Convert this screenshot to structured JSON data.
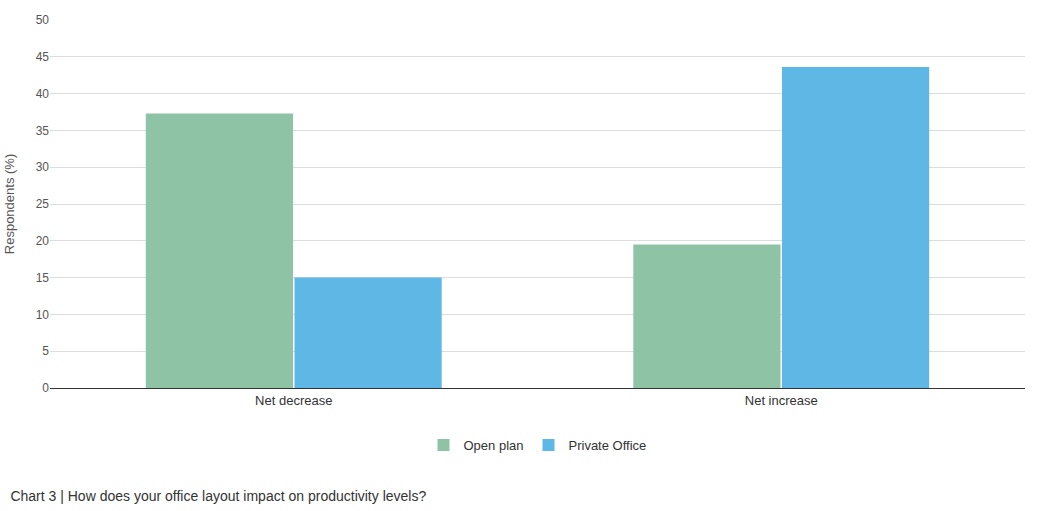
{
  "chart_data": {
    "type": "bar",
    "title": "Chart 3 | How does your office layout impact on productivity levels?",
    "y_label": "Respondents (%)",
    "categories": [
      "Net decrease",
      "Net increase"
    ],
    "series": [
      {
        "name": "Open plan",
        "color": "#8fc3a5",
        "values": [
          37.3,
          19.5
        ]
      },
      {
        "name": "Private Office",
        "color": "#5fb7e5",
        "values": [
          15,
          43.6
        ]
      }
    ],
    "ylim": [
      0,
      50
    ],
    "yticks": [
      0,
      5,
      10,
      15,
      20,
      25,
      30,
      35,
      40,
      45,
      50
    ],
    "grid": true,
    "legend": "bottom"
  }
}
